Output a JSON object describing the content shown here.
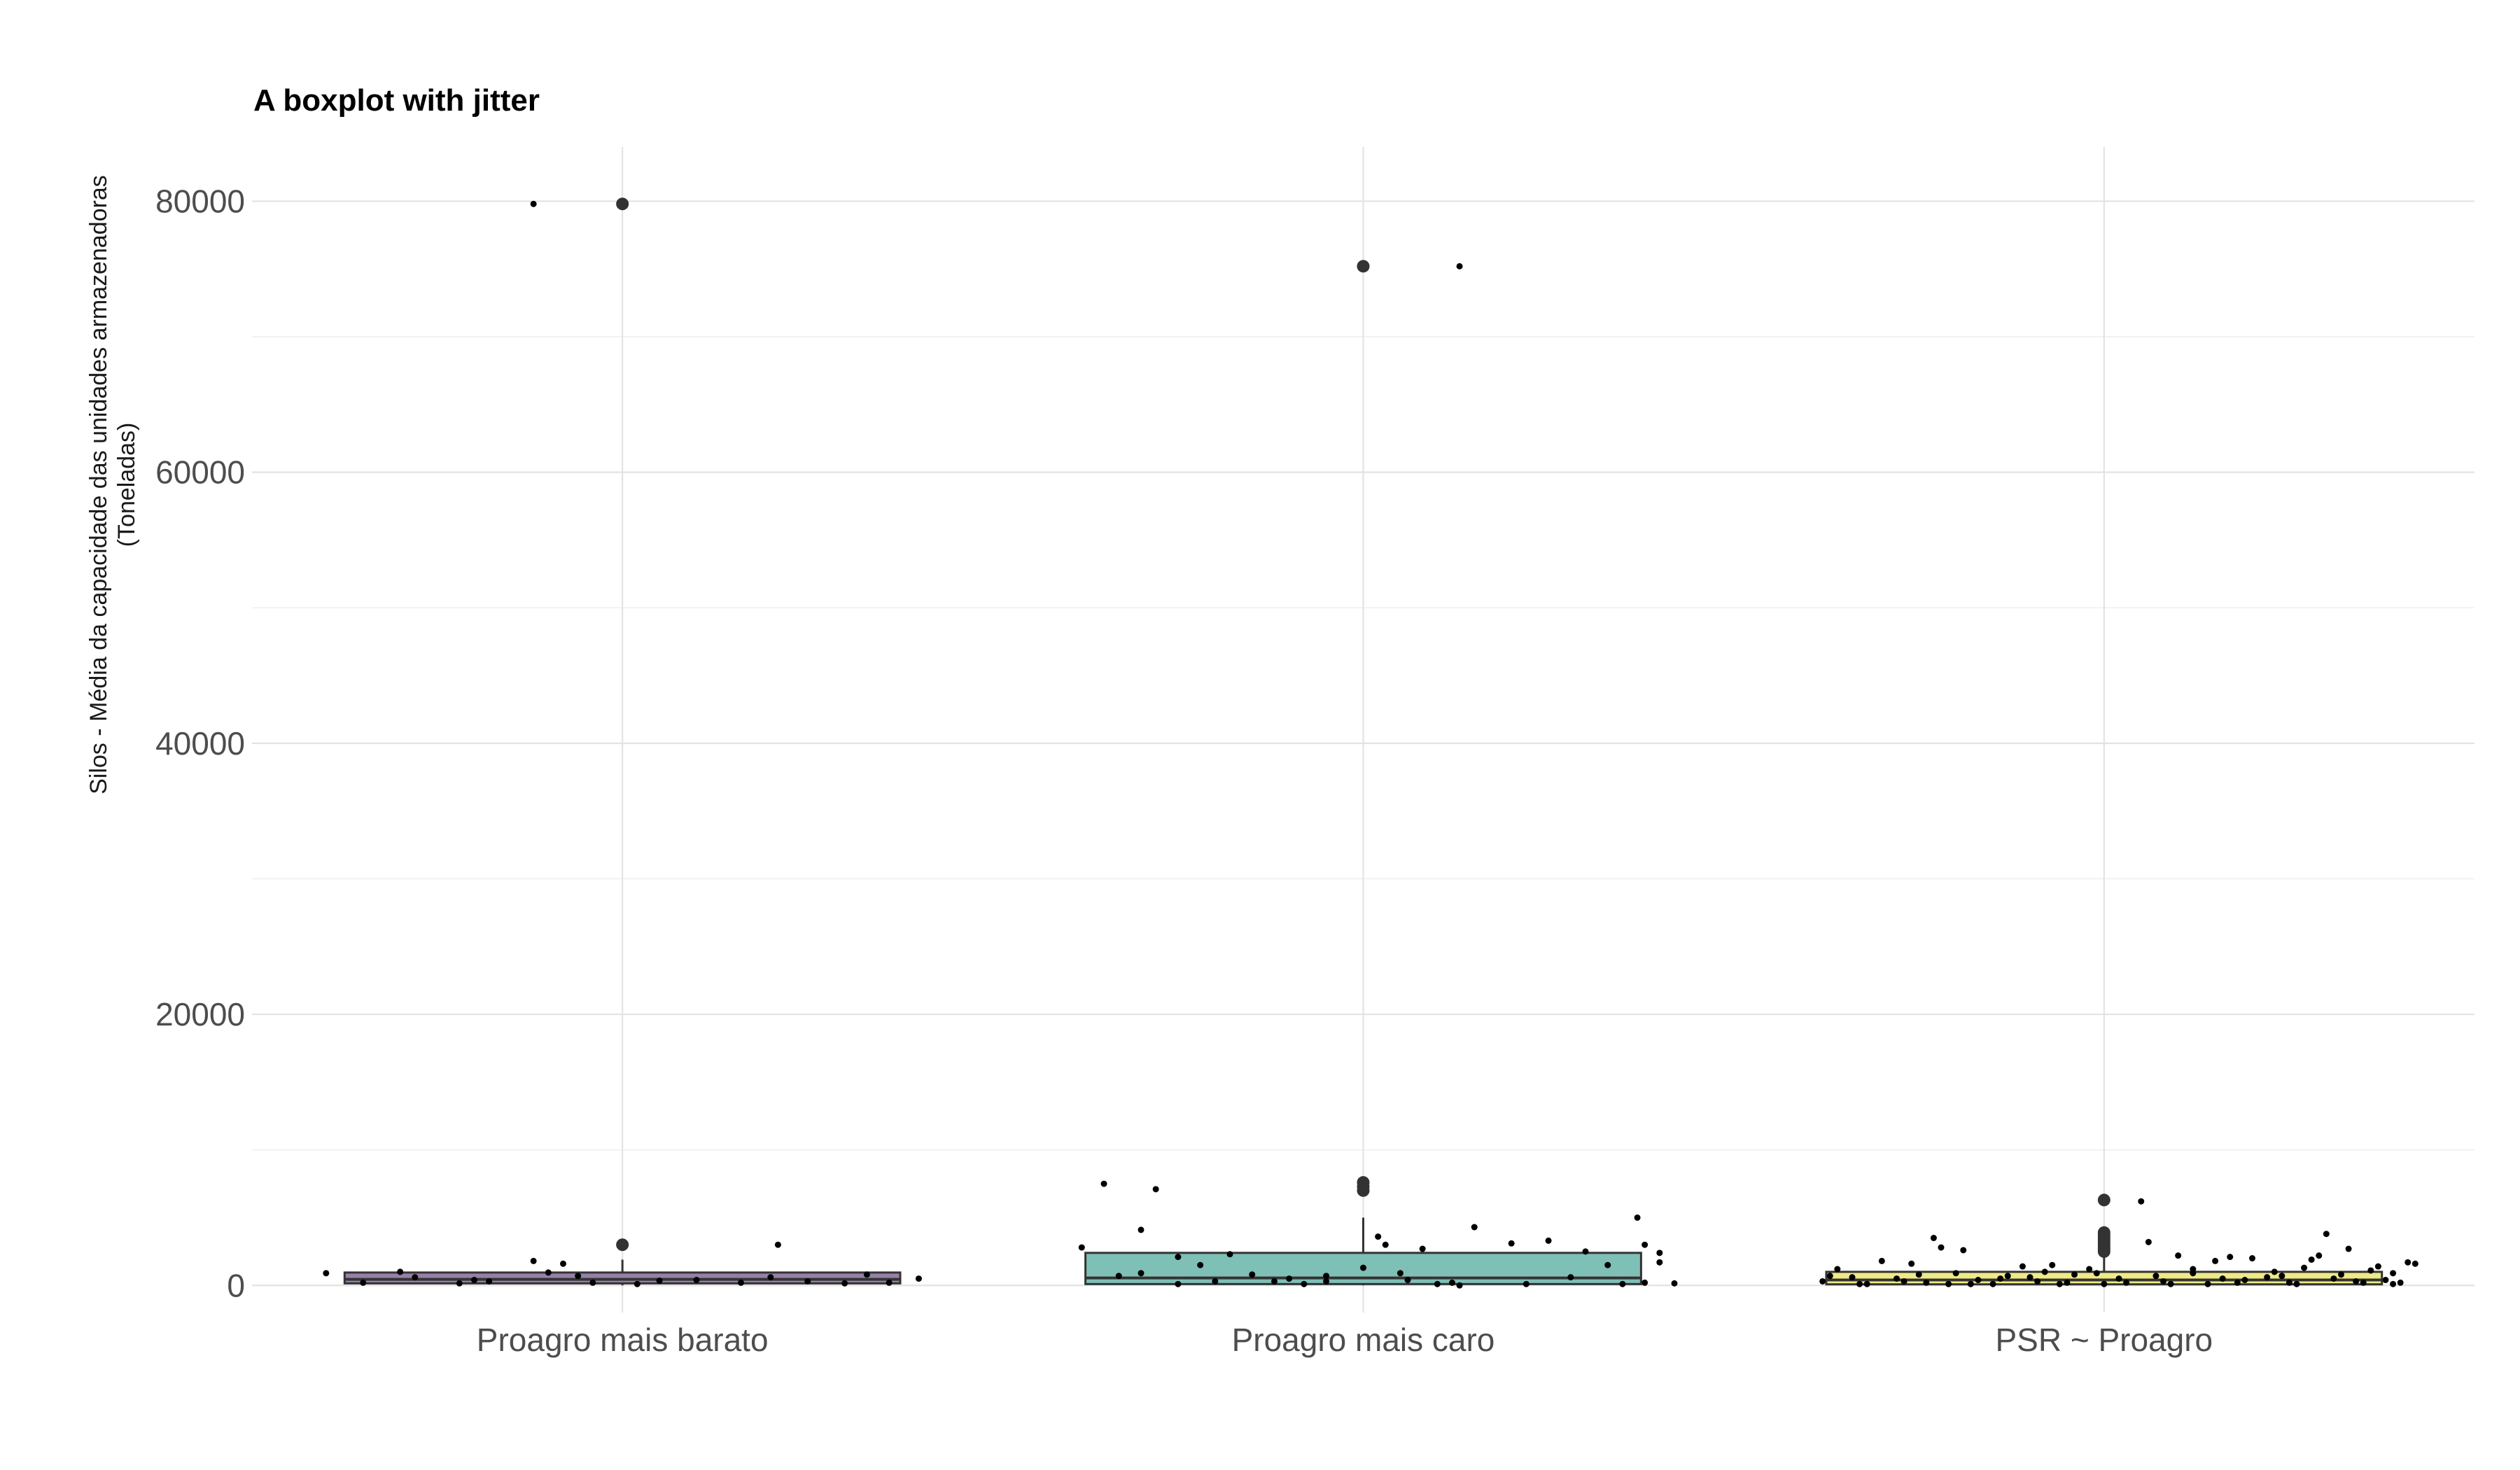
{
  "chart_data": {
    "type": "boxplot",
    "title": "A boxplot with jitter",
    "xlabel": "",
    "ylabel_lines": [
      "Silos - Média da capacidade das unidades armazenadoras",
      "(Toneladas)"
    ],
    "ylim": [
      -2000,
      84000
    ],
    "yticks": [
      0,
      20000,
      40000,
      60000,
      80000
    ],
    "yticks_labels": [
      "0",
      "20000",
      "40000",
      "60000",
      "80000"
    ],
    "grid": true,
    "legend": "none",
    "categories": [
      "Proagro mais barato",
      "Proagro mais caro",
      "PSR ~ Proagro"
    ],
    "boxes": [
      {
        "category": "Proagro mais barato",
        "color": "#9680a8",
        "q1": 150,
        "median": 450,
        "q3": 950,
        "whisker_low": 0,
        "whisker_high": 1900,
        "outliers": [
          3000,
          79800
        ],
        "jitter": [
          [
            -0.4,
            900
          ],
          [
            -0.35,
            200
          ],
          [
            -0.3,
            1000
          ],
          [
            -0.28,
            600
          ],
          [
            -0.22,
            150
          ],
          [
            -0.18,
            300
          ],
          [
            -0.12,
            1800
          ],
          [
            -0.1,
            950
          ],
          [
            -0.08,
            1600
          ],
          [
            -0.06,
            700
          ],
          [
            -0.04,
            200
          ],
          [
            0.02,
            100
          ],
          [
            0.1,
            400
          ],
          [
            0.16,
            200
          ],
          [
            0.2,
            600
          ],
          [
            0.25,
            300
          ],
          [
            0.3,
            150
          ],
          [
            0.33,
            800
          ],
          [
            0.36,
            200
          ],
          [
            0.4,
            500
          ],
          [
            -0.2,
            400
          ],
          [
            0.05,
            350
          ],
          [
            0.21,
            3000
          ],
          [
            -0.12,
            79800
          ]
        ]
      },
      {
        "category": "Proagro mais caro",
        "color": "#7ebfb6",
        "q1": 100,
        "median": 550,
        "q3": 2400,
        "whisker_low": 0,
        "whisker_high": 5000,
        "outliers": [
          7000,
          7300,
          7600,
          75200
        ],
        "jitter": [
          [
            -0.35,
            7500
          ],
          [
            -0.28,
            7100
          ],
          [
            -0.3,
            4100
          ],
          [
            -0.25,
            2100
          ],
          [
            -0.22,
            1500
          ],
          [
            -0.18,
            2300
          ],
          [
            -0.15,
            800
          ],
          [
            -0.1,
            500
          ],
          [
            -0.05,
            300
          ],
          [
            -0.3,
            900
          ],
          [
            -0.33,
            700
          ],
          [
            -0.2,
            300
          ],
          [
            0.02,
            3600
          ],
          [
            0.03,
            3000
          ],
          [
            0.06,
            400
          ],
          [
            0.08,
            2700
          ],
          [
            0.12,
            200
          ],
          [
            0.15,
            4300
          ],
          [
            0.2,
            3100
          ],
          [
            0.25,
            3300
          ],
          [
            0.3,
            2500
          ],
          [
            0.33,
            1500
          ],
          [
            0.37,
            5000
          ],
          [
            0.38,
            3000
          ],
          [
            0.4,
            2400
          ],
          [
            0.4,
            1700
          ],
          [
            0.38,
            200
          ],
          [
            0.35,
            100
          ],
          [
            0.28,
            600
          ],
          [
            0.22,
            100
          ],
          [
            0.13,
            0
          ],
          [
            0.1,
            100
          ],
          [
            0.05,
            900
          ],
          [
            0,
            1300
          ],
          [
            -0.08,
            100
          ],
          [
            -0.12,
            300
          ],
          [
            -0.25,
            100
          ],
          [
            -0.38,
            2800
          ],
          [
            0.13,
            75200
          ],
          [
            0.42,
            150
          ],
          [
            -0.05,
            700
          ]
        ]
      },
      {
        "category": "PSR ~ Proagro",
        "color": "#f0ea86",
        "q1": 80,
        "median": 400,
        "q3": 1000,
        "whisker_low": 0,
        "whisker_high": 2300,
        "outliers": [
          2500,
          2700,
          2900,
          3100,
          3300,
          3500,
          3700,
          3900,
          6300
        ],
        "jitter": [
          [
            -0.38,
            300
          ],
          [
            -0.36,
            1200
          ],
          [
            -0.34,
            600
          ],
          [
            -0.32,
            100
          ],
          [
            -0.3,
            1800
          ],
          [
            -0.28,
            500
          ],
          [
            -0.26,
            1600
          ],
          [
            -0.24,
            200
          ],
          [
            -0.23,
            3500
          ],
          [
            -0.22,
            2800
          ],
          [
            -0.2,
            900
          ],
          [
            -0.19,
            2600
          ],
          [
            -0.17,
            400
          ],
          [
            -0.15,
            100
          ],
          [
            -0.13,
            700
          ],
          [
            -0.11,
            1400
          ],
          [
            -0.09,
            300
          ],
          [
            -0.08,
            1000
          ],
          [
            -0.07,
            1500
          ],
          [
            -0.05,
            200
          ],
          [
            -0.04,
            800
          ],
          [
            -0.02,
            1200
          ],
          [
            0,
            100
          ],
          [
            0.02,
            500
          ],
          [
            0.05,
            6200
          ],
          [
            0.06,
            3200
          ],
          [
            0.08,
            300
          ],
          [
            0.1,
            2200
          ],
          [
            0.12,
            900
          ],
          [
            0.14,
            100
          ],
          [
            0.15,
            1800
          ],
          [
            0.17,
            2100
          ],
          [
            0.19,
            400
          ],
          [
            0.2,
            2000
          ],
          [
            0.22,
            600
          ],
          [
            0.23,
            1000
          ],
          [
            0.25,
            200
          ],
          [
            0.27,
            1300
          ],
          [
            0.28,
            1900
          ],
          [
            0.29,
            2200
          ],
          [
            0.3,
            3800
          ],
          [
            0.32,
            800
          ],
          [
            0.33,
            2700
          ],
          [
            0.34,
            300
          ],
          [
            0.36,
            1100
          ],
          [
            0.37,
            1400
          ],
          [
            0.38,
            400
          ],
          [
            0.39,
            900
          ],
          [
            0.4,
            200
          ],
          [
            0.41,
            1700
          ],
          [
            0.42,
            1600
          ],
          [
            0.39,
            100
          ],
          [
            -0.37,
            700
          ],
          [
            -0.33,
            100
          ],
          [
            -0.27,
            300
          ],
          [
            -0.21,
            100
          ],
          [
            -0.14,
            500
          ],
          [
            -0.06,
            100
          ],
          [
            0.03,
            200
          ],
          [
            0.09,
            100
          ],
          [
            0.18,
            200
          ],
          [
            0.26,
            100
          ],
          [
            0.31,
            500
          ],
          [
            0.35,
            200
          ],
          [
            -0.1,
            600
          ],
          [
            -0.25,
            800
          ],
          [
            0.07,
            700
          ],
          [
            0.16,
            500
          ],
          [
            -0.01,
            900
          ],
          [
            0.12,
            1200
          ],
          [
            0.24,
            700
          ],
          [
            -0.18,
            100
          ]
        ]
      }
    ]
  }
}
